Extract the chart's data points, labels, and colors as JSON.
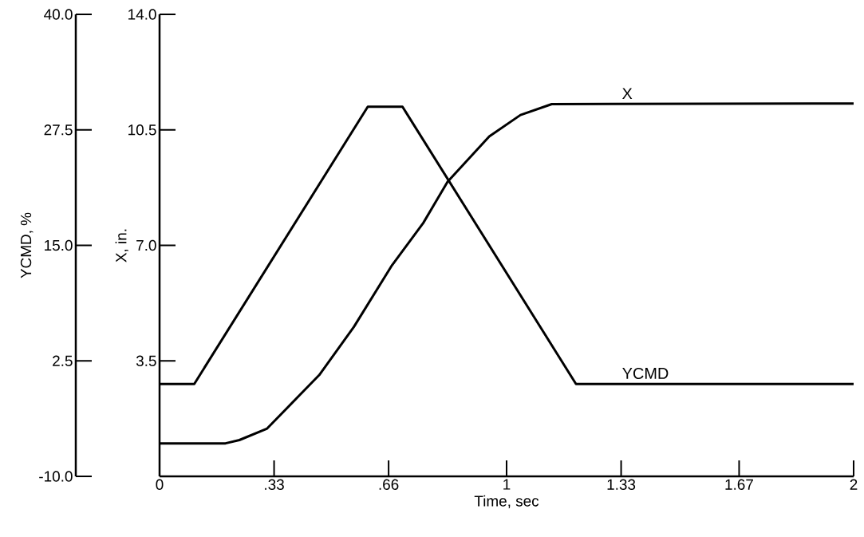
{
  "chart_data": {
    "type": "line",
    "xlabel": "Time, sec",
    "ylabel": "X, in.",
    "y2label": "YCMD, %",
    "series": [
      {
        "name": "X",
        "color": "#000000",
        "x": [
          0,
          0.19,
          0.23,
          0.31,
          0.46,
          0.56,
          0.67,
          0.76,
          0.83,
          0.95,
          1.04,
          1.13,
          2
        ],
        "values": [
          1.0,
          1.0,
          1.1,
          1.45,
          3.07,
          4.53,
          6.4,
          7.68,
          8.93,
          10.3,
          10.95,
          11.28,
          11.3
        ]
      },
      {
        "name": "YCMD",
        "color": "#000000",
        "axis": "y2",
        "x": [
          0,
          0.1,
          0.6,
          0.7,
          1.2,
          2
        ],
        "values": [
          0,
          0,
          30,
          30,
          0,
          0
        ]
      }
    ],
    "xlim": [
      0,
      2
    ],
    "ylim": [
      0,
      14
    ],
    "y2lim": [
      -10,
      40
    ],
    "xticks": [
      0,
      {
        "value": 0.33,
        "label": ".33"
      },
      {
        "value": 0.66,
        "label": ".66"
      },
      1,
      {
        "value": 1.33,
        "label": "1.33"
      },
      {
        "value": 1.67,
        "label": "1.67"
      },
      2
    ],
    "yticks": [
      {
        "value": 3.5,
        "label": "3.5"
      },
      {
        "value": 7,
        "label": "7.0"
      },
      {
        "value": 10.5,
        "label": "10.5"
      },
      {
        "value": 14,
        "label": "14.0"
      }
    ],
    "y2ticks": [
      {
        "value": -10,
        "label": "-10.0"
      },
      {
        "value": 2.5,
        "label": "2.5"
      },
      {
        "value": 15,
        "label": "15.0"
      },
      {
        "value": 27.5,
        "label": "27.5"
      },
      {
        "value": 40,
        "label": "40.0"
      }
    ],
    "line_style": "solid"
  }
}
